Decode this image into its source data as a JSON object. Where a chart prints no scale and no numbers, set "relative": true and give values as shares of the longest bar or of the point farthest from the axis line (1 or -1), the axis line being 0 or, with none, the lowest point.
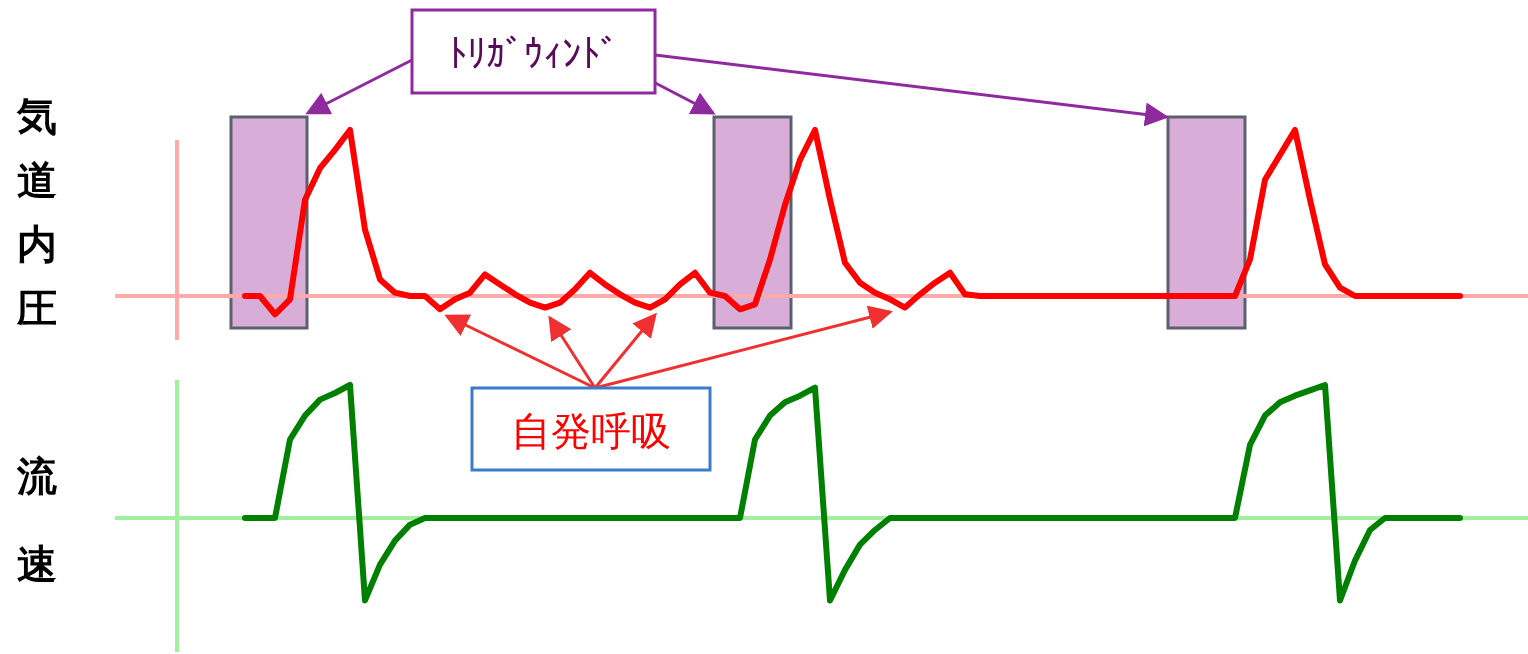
{
  "chart_data": [
    {
      "type": "line",
      "ylabel": "気道内圧",
      "relative": true,
      "categories": [
        null,
        null,
        null,
        null,
        null,
        null,
        null,
        null,
        null,
        null,
        null,
        null,
        null,
        null,
        null,
        null,
        null,
        null,
        null,
        null,
        null,
        null,
        null,
        null,
        null,
        null,
        null,
        null,
        null,
        null,
        null,
        null,
        null,
        null,
        null,
        null,
        null,
        null,
        null,
        null,
        null,
        null,
        null,
        null,
        null,
        null,
        null,
        null,
        null,
        null,
        null,
        null,
        null,
        null,
        null,
        null,
        null,
        null,
        null,
        null,
        null,
        null,
        null,
        null,
        null,
        null,
        null,
        null,
        null,
        null,
        null,
        null,
        null,
        null,
        null,
        null,
        null,
        null,
        null,
        null,
        null,
        null
      ],
      "series": [
        {
          "color": "#ff0000",
          "values": [
            0,
            0,
            -0.11,
            -0.02,
            0.58,
            0.77,
            0.88,
            1,
            0.4,
            0.1,
            0.02,
            0,
            0,
            -0.08,
            -0.02,
            0.02,
            0.13,
            0.07,
            0.01,
            -0.04,
            -0.07,
            -0.04,
            0.04,
            0.14,
            0.07,
            0.01,
            -0.04,
            -0.07,
            -0.02,
            0.07,
            0.14,
            0.02,
            0,
            -0.08,
            -0.05,
            0.22,
            0.55,
            0.82,
            1,
            0.58,
            0.2,
            0.08,
            0.02,
            -0.02,
            -0.07,
            0.01,
            0.08,
            0.14,
            0.01,
            0,
            0,
            0,
            0,
            0,
            0,
            0,
            0,
            0,
            0,
            0,
            0,
            0,
            0,
            0,
            0,
            0,
            0,
            0.22,
            0.7,
            0.85,
            1,
            0.58,
            0.19,
            0.05,
            0,
            0,
            0,
            0,
            0,
            0,
            0,
            0
          ]
        }
      ],
      "ref_lines": [
        {
          "axis": "y",
          "value": 0,
          "color": "#ffaaaa"
        }
      ],
      "annotations": [
        "ﾄﾘｶﾞｳｨﾝﾄﾞ",
        "自発呼吸"
      ]
    },
    {
      "type": "line",
      "ylabel": "流速",
      "relative": true,
      "categories": [
        null,
        null,
        null,
        null,
        null,
        null,
        null,
        null,
        null,
        null,
        null,
        null,
        null,
        null,
        null,
        null,
        null,
        null,
        null,
        null,
        null,
        null,
        null,
        null,
        null,
        null,
        null,
        null,
        null,
        null,
        null,
        null,
        null,
        null,
        null,
        null,
        null,
        null,
        null,
        null,
        null,
        null,
        null,
        null,
        null,
        null,
        null,
        null,
        null,
        null,
        null,
        null,
        null,
        null,
        null,
        null,
        null,
        null,
        null,
        null,
        null,
        null,
        null,
        null,
        null,
        null,
        null,
        null,
        null,
        null,
        null,
        null,
        null,
        null,
        null,
        null,
        null,
        null,
        null,
        null,
        null,
        null
      ],
      "ref_lines": [
        {
          "axis": "y",
          "value": 0,
          "color": "#a0f0a0"
        }
      ],
      "series": [
        {
          "color": "#008000",
          "values": [
            0,
            0,
            0,
            0.59,
            0.77,
            0.89,
            0.94,
            1,
            -0.62,
            -0.35,
            -0.17,
            -0.05,
            0,
            0,
            0,
            0,
            0,
            0,
            0,
            0,
            0,
            0,
            0,
            0,
            0,
            0,
            0,
            0,
            0,
            0,
            0,
            0,
            0,
            0,
            0.59,
            0.77,
            0.87,
            0.92,
            0.98,
            -0.62,
            -0.39,
            -0.2,
            -0.09,
            0,
            0,
            0,
            0,
            0,
            0,
            0,
            0,
            0,
            0,
            0,
            0,
            0,
            0,
            0,
            0,
            0,
            0,
            0,
            0,
            0,
            0,
            0,
            0,
            0.55,
            0.77,
            0.87,
            0.92,
            0.96,
            1,
            -0.62,
            -0.32,
            -0.09,
            0,
            0,
            0,
            0,
            0,
            0
          ]
        }
      ]
    }
  ]
}
